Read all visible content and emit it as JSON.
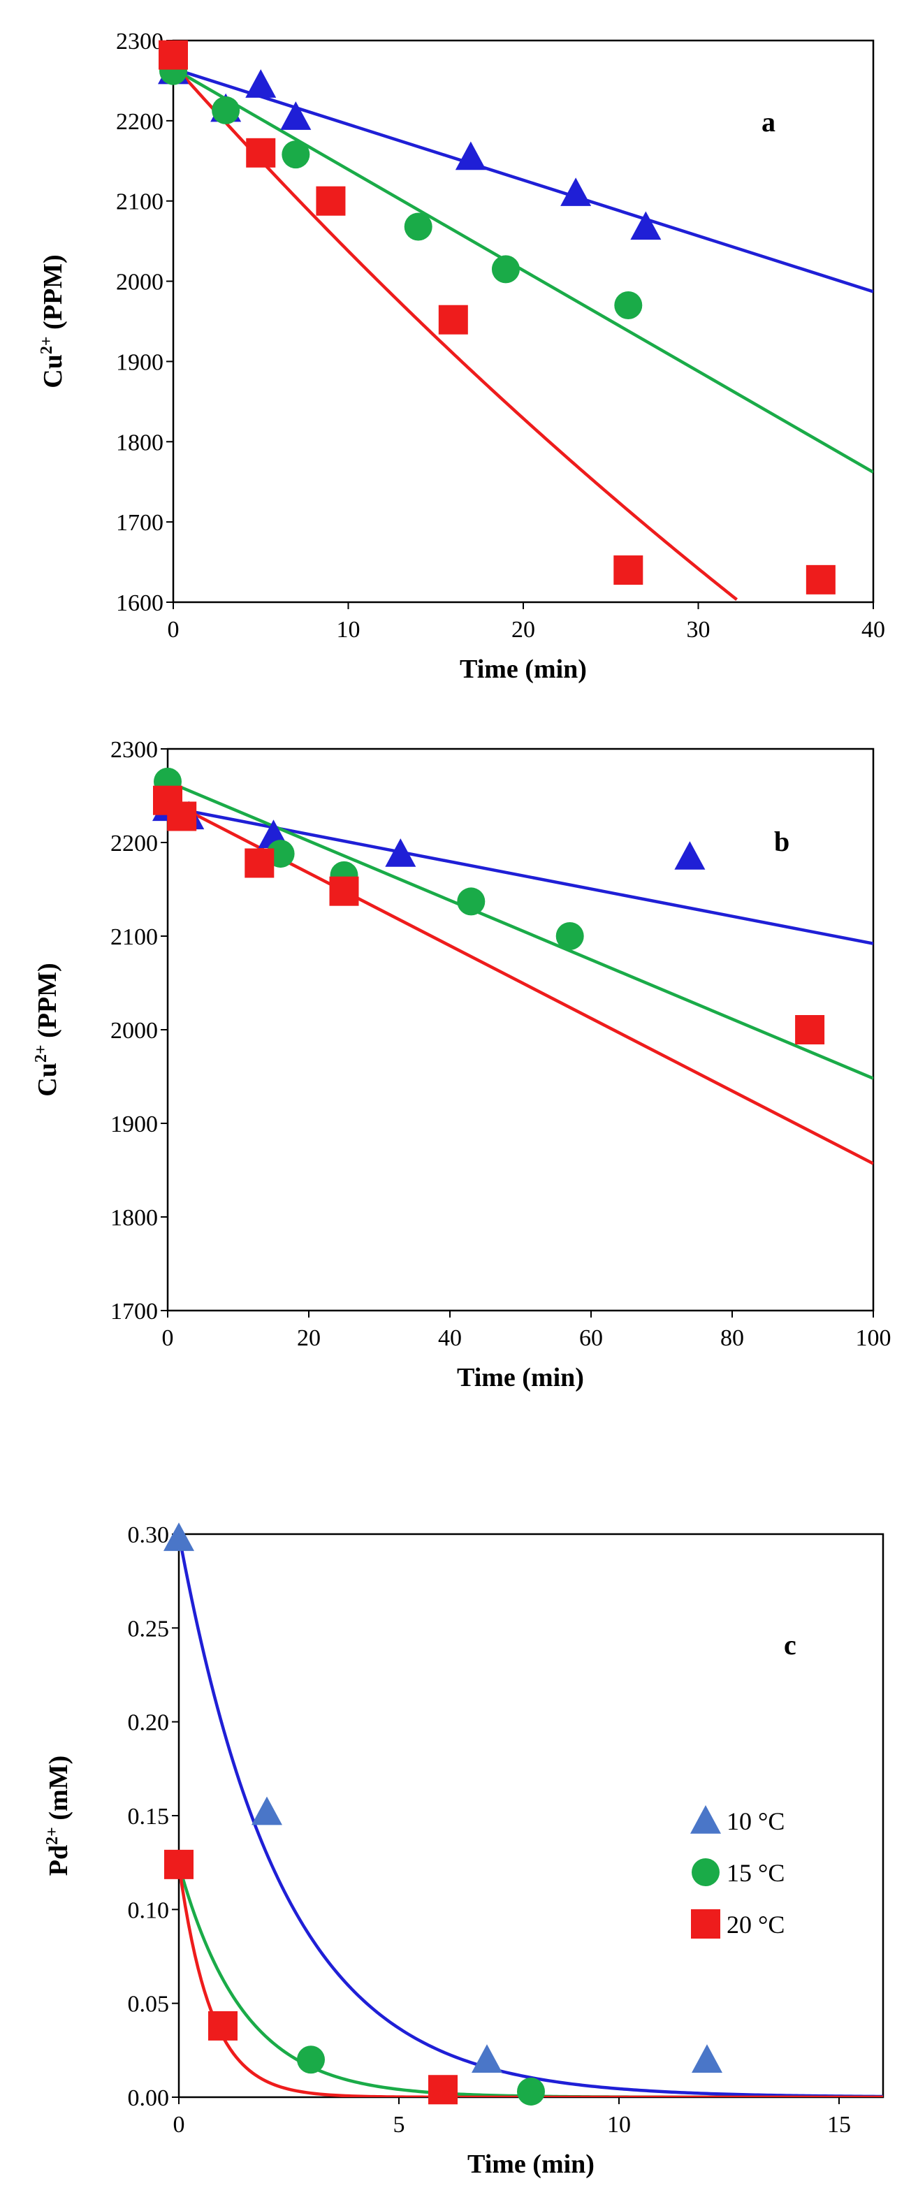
{
  "chart_data": [
    {
      "type": "scatter",
      "panel": "a",
      "xlabel": "Time (min)",
      "ylabel_base": "Cu",
      "ylabel_sup": "2+",
      "ylabel_unit": " (PPM)",
      "xlim": [
        0,
        40
      ],
      "ylim": [
        1600,
        2300
      ],
      "xticks": [
        0,
        10,
        20,
        30,
        40
      ],
      "yticks": [
        1600,
        1700,
        1800,
        1900,
        2000,
        2100,
        2200,
        2300
      ],
      "series": [
        {
          "name": "10 °C",
          "marker": "triangle",
          "color": "#1f1fd6",
          "x": [
            0,
            3,
            5,
            7,
            17,
            23,
            27
          ],
          "y": [
            2262,
            2215,
            2245,
            2205,
            2155,
            2110,
            2068
          ],
          "fit": {
            "kind": "linear",
            "x0": 0,
            "y0": 2265,
            "x1": 40,
            "y1": 1987
          }
        },
        {
          "name": "15 °C",
          "marker": "circle",
          "color": "#1aab48",
          "x": [
            0,
            3,
            7,
            14,
            19,
            26
          ],
          "y": [
            2262,
            2213,
            2158,
            2068,
            2015,
            1970
          ],
          "fit": {
            "kind": "linear",
            "x0": 0,
            "y0": 2265,
            "x1": 40,
            "y1": 1762
          }
        },
        {
          "name": "20 °C",
          "marker": "square",
          "color": "#ee1c1c",
          "x": [
            0,
            5,
            9,
            16,
            26,
            37
          ],
          "y": [
            2282,
            2160,
            2100,
            1952,
            1640,
            1628
          ],
          "fit": {
            "kind": "exp",
            "c0": 2270,
            "k": 0.0108,
            "xmax": 32.2
          }
        }
      ]
    },
    {
      "type": "scatter",
      "panel": "b",
      "xlabel": "Time (min)",
      "ylabel_base": "Cu",
      "ylabel_sup": "2+",
      "ylabel_unit": " (PPM)",
      "xlim": [
        0,
        100
      ],
      "ylim": [
        1700,
        2300
      ],
      "xticks": [
        0,
        20,
        40,
        60,
        80,
        100
      ],
      "yticks": [
        1700,
        1800,
        1900,
        2000,
        2100,
        2200,
        2300
      ],
      "series": [
        {
          "name": "10 °C",
          "marker": "triangle",
          "color": "#1f1fd6",
          "x": [
            0,
            3,
            15,
            33,
            74
          ],
          "y": [
            2237,
            2228,
            2208,
            2188,
            2185
          ],
          "fit": {
            "kind": "linear",
            "x0": 0,
            "y0": 2238,
            "x1": 100,
            "y1": 2092
          }
        },
        {
          "name": "15 °C",
          "marker": "circle",
          "color": "#1aab48",
          "x": [
            0,
            16,
            25,
            43,
            57
          ],
          "y": [
            2265,
            2188,
            2165,
            2137,
            2100
          ],
          "fit": {
            "kind": "linear",
            "x0": 0,
            "y0": 2265,
            "x1": 100,
            "y1": 1948
          }
        },
        {
          "name": "20 °C",
          "marker": "square",
          "color": "#ee1c1c",
          "x": [
            0,
            2,
            13,
            25,
            91
          ],
          "y": [
            2245,
            2228,
            2178,
            2148,
            2000
          ],
          "fit": {
            "kind": "linear",
            "x0": 0,
            "y0": 2245,
            "x1": 100,
            "y1": 1857
          }
        }
      ]
    },
    {
      "type": "scatter",
      "panel": "c",
      "xlabel": "Time (min)",
      "ylabel_base": "Pd",
      "ylabel_sup": "2+",
      "ylabel_unit": " (mM)",
      "xlim": [
        0,
        16
      ],
      "ylim": [
        0,
        0.3
      ],
      "xticks": [
        0,
        5,
        10,
        15
      ],
      "yticks": [
        0.0,
        0.05,
        0.1,
        0.15,
        0.2,
        0.25,
        0.3
      ],
      "legend": "center-right",
      "series": [
        {
          "name": "10 °C",
          "marker": "triangle",
          "color": "#4a76c8",
          "line_color": "#1f1fd6",
          "x": [
            0,
            2,
            7,
            12
          ],
          "y": [
            0.298,
            0.152,
            0.02,
            0.02
          ],
          "fit": {
            "kind": "exp",
            "c0": 0.3,
            "k": 0.42,
            "xmax": 16
          }
        },
        {
          "name": "15 °C",
          "marker": "circle",
          "color": "#1aab48",
          "x": [
            0,
            3,
            8
          ],
          "y": [
            0.124,
            0.02,
            0.003
          ],
          "fit": {
            "kind": "exp",
            "c0": 0.124,
            "k": 0.68,
            "xmax": 16
          }
        },
        {
          "name": "20 °C",
          "marker": "square",
          "color": "#ee1c1c",
          "x": [
            0,
            1,
            6
          ],
          "y": [
            0.124,
            0.038,
            0.004
          ],
          "fit": {
            "kind": "exp",
            "c0": 0.124,
            "k": 1.35,
            "xmax": 16
          }
        }
      ]
    }
  ]
}
